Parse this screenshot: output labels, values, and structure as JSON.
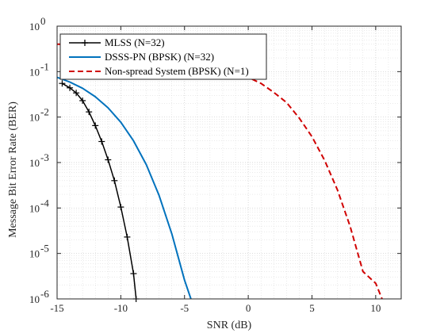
{
  "chart_data": {
    "type": "line",
    "xlabel": "SNR (dB)",
    "ylabel": "Message Bit Error Rate (BER)",
    "xlim": [
      -15,
      12
    ],
    "ylim": [
      1e-06,
      1
    ],
    "yscale": "log",
    "grid": true,
    "minor_grid": true,
    "legend_position": "top-left",
    "x_ticks": [
      {
        "value": -15,
        "label": "-15"
      },
      {
        "value": -10,
        "label": "-10"
      },
      {
        "value": -5,
        "label": "-5"
      },
      {
        "value": 0,
        "label": "0"
      },
      {
        "value": 5,
        "label": "5"
      },
      {
        "value": 10,
        "label": "10"
      }
    ],
    "y_ticks": [
      {
        "value": 1e-06,
        "base": "10",
        "exp": "-6"
      },
      {
        "value": 1e-05,
        "base": "10",
        "exp": "-5"
      },
      {
        "value": 0.0001,
        "base": "10",
        "exp": "-4"
      },
      {
        "value": 0.001,
        "base": "10",
        "exp": "-3"
      },
      {
        "value": 0.01,
        "base": "10",
        "exp": "-2"
      },
      {
        "value": 0.1,
        "base": "10",
        "exp": "-1"
      },
      {
        "value": 1,
        "base": "10",
        "exp": "0"
      }
    ],
    "series": [
      {
        "name": "MLSS (N=32)",
        "color": "#000000",
        "line_style": "solid",
        "marker": "plus",
        "x": [
          -14.6,
          -14.0,
          -13.5,
          -13.0,
          -12.5,
          -12.0,
          -11.5,
          -11.0,
          -10.5,
          -10.0,
          -9.5,
          -9.0,
          -8.8
        ],
        "y": [
          0.055,
          0.044,
          0.034,
          0.023,
          0.013,
          0.0065,
          0.0029,
          0.00115,
          0.0004,
          0.000105,
          2.3e-05,
          3.6e-06,
          1e-06
        ]
      },
      {
        "name": "DSSS-PN (BPSK) (N=32)",
        "color": "#0072BD",
        "line_style": "solid",
        "marker": "none",
        "x": [
          -15,
          -14,
          -13,
          -12,
          -11,
          -10,
          -9,
          -8,
          -7,
          -6,
          -5,
          -4.5
        ],
        "y": [
          0.075,
          0.059,
          0.043,
          0.028,
          0.016,
          0.0077,
          0.003,
          0.0009,
          0.00019,
          2.7e-05,
          2.6e-06,
          1e-06
        ]
      },
      {
        "name": "Non-spread System (BPSK) (N=1)",
        "color": "#D00000",
        "line_style": "dashed",
        "marker": "none",
        "x": [
          -15,
          -14,
          -13,
          -12,
          -11,
          -10,
          -9,
          -8,
          -7,
          -6,
          -5,
          -4,
          -3,
          -2,
          -1,
          0,
          1,
          2,
          3,
          4,
          5,
          6,
          7,
          8,
          9,
          10,
          10.5
        ],
        "y": [
          0.4,
          0.4,
          0.4,
          0.4,
          0.4,
          0.4,
          0.4,
          0.4,
          0.4,
          0.4,
          0.4,
          0.4,
          0.4,
          0.4,
          0.4,
          0.075,
          0.055,
          0.035,
          0.021,
          0.0095,
          0.0037,
          0.0011,
          0.00025,
          3.9e-05,
          4e-06,
          2.2e-06,
          1e-06
        ]
      }
    ]
  }
}
